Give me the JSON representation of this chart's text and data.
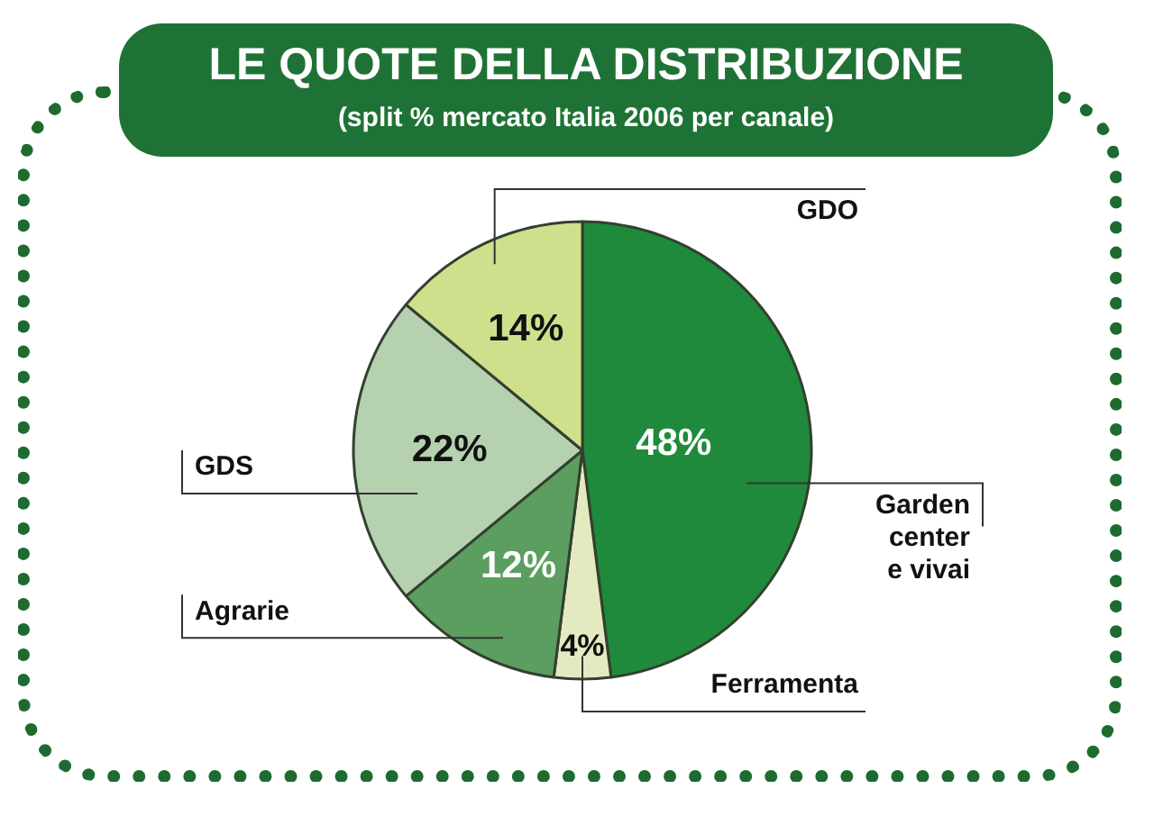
{
  "chart_data": {
    "type": "pie",
    "title": "LE QUOTE DELLA DISTRIBUZIONE",
    "subtitle": "(split % mercato Italia 2006 per canale)",
    "categories": [
      "Garden center e vivai",
      "Ferramenta",
      "Agrarie",
      "GDS",
      "GDO"
    ],
    "values": [
      48,
      4,
      12,
      22,
      14
    ],
    "colors": [
      "#1f8a3b",
      "#e4eabf",
      "#5b9e60",
      "#b5d1af",
      "#cee08c"
    ],
    "value_labels": [
      "48%",
      "4%",
      "12%",
      "22%",
      "14%"
    ]
  }
}
